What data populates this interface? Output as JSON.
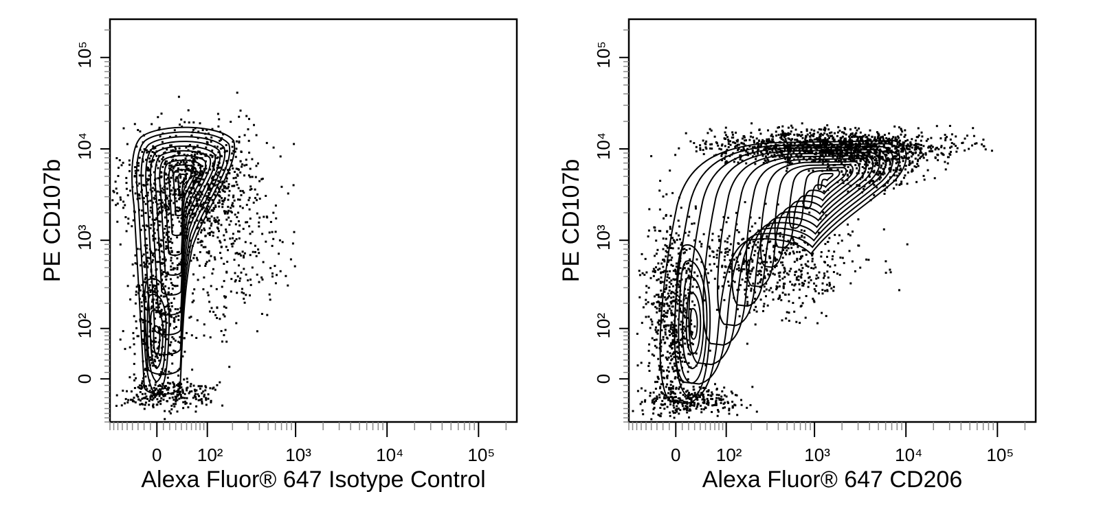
{
  "chart_data": [
    {
      "type": "contour",
      "x_label": "Alexa Fluor® 647 Isotype Control",
      "y_label": "PE CD107b",
      "x_scale": "biexponential",
      "y_scale": "biexponential",
      "xlim": [
        -90,
        262144
      ],
      "ylim": [
        -80,
        262144
      ],
      "xticks": [
        0,
        {
          "value": 100,
          "label": "10²"
        },
        {
          "value": 1000,
          "label": "10³"
        },
        {
          "value": 10000,
          "label": "10⁴"
        },
        {
          "value": 100000,
          "label": "10⁵"
        }
      ],
      "yticks": [
        0,
        {
          "value": 100,
          "label": "10²"
        },
        {
          "value": 1000,
          "label": "10³"
        },
        {
          "value": 10000,
          "label": "10⁴"
        },
        {
          "value": 100000,
          "label": "10⁵"
        }
      ],
      "color": "#000000"
    },
    {
      "type": "contour",
      "x_label": "Alexa Fluor® 647 CD206",
      "y_label": "PE CD107b",
      "x_scale": "biexponential",
      "y_scale": "biexponential",
      "xlim": [
        -90,
        262144
      ],
      "ylim": [
        -80,
        262144
      ],
      "xticks": [
        0,
        {
          "value": 100,
          "label": "10²"
        },
        {
          "value": 1000,
          "label": "10³"
        },
        {
          "value": 10000,
          "label": "10⁴"
        },
        {
          "value": 100000,
          "label": "10⁵"
        }
      ],
      "yticks": [
        0,
        {
          "value": 100,
          "label": "10²"
        },
        {
          "value": 1000,
          "label": "10³"
        },
        {
          "value": 10000,
          "label": "10⁴"
        },
        {
          "value": 100000,
          "label": "10⁵"
        }
      ],
      "color": "#000000"
    }
  ]
}
